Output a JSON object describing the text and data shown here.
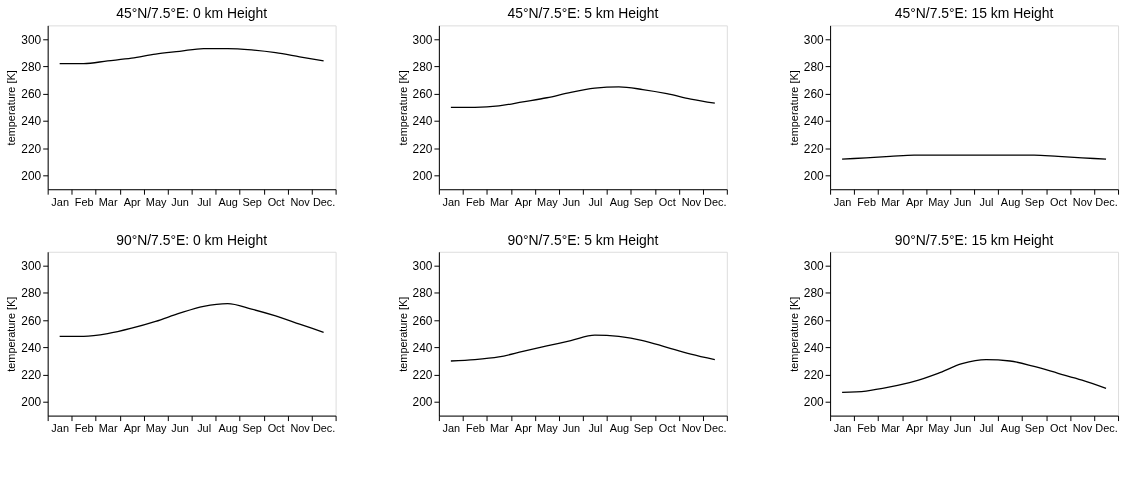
{
  "chart_data": [
    {
      "type": "line",
      "title": "45°N/7.5°E: 0 km Height",
      "ylabel": "temperature [K]",
      "grid": false,
      "categories": [
        "Jan",
        "Feb",
        "Mar",
        "Apr",
        "May",
        "Jun",
        "Jul",
        "Aug",
        "Sep",
        "Oct",
        "Nov",
        "Dec."
      ],
      "ylim": [
        190,
        310
      ],
      "yticks": [
        200,
        220,
        240,
        260,
        280,
        300
      ],
      "series": [
        {
          "color": "#000000",
          "values": [
            282,
            282,
            284,
            286,
            289,
            291,
            293,
            293,
            292,
            290,
            287,
            284
          ]
        }
      ]
    },
    {
      "type": "line",
      "title": "45°N/7.5°E: 5 km Height",
      "ylabel": "temperature [K]",
      "grid": false,
      "categories": [
        "Jan",
        "Feb",
        "Mar",
        "Apr",
        "May",
        "Jun",
        "Jul",
        "Aug",
        "Sep",
        "Oct",
        "Nov",
        "Dec."
      ],
      "ylim": [
        190,
        310
      ],
      "yticks": [
        200,
        220,
        240,
        260,
        280,
        300
      ],
      "series": [
        {
          "color": "#000000",
          "values": [
            250,
            250,
            251,
            254,
            257,
            261,
            264,
            265,
            263,
            260,
            256,
            253
          ]
        }
      ]
    },
    {
      "type": "line",
      "title": "45°N/7.5°E: 15 km Height",
      "ylabel": "temperature [K]",
      "grid": false,
      "categories": [
        "Jan",
        "Feb",
        "Mar",
        "Apr",
        "May",
        "Jun",
        "Jul",
        "Aug",
        "Sep",
        "Oct",
        "Nov",
        "Dec."
      ],
      "ylim": [
        190,
        310
      ],
      "yticks": [
        200,
        220,
        240,
        260,
        280,
        300
      ],
      "series": [
        {
          "color": "#000000",
          "values": [
            212,
            213,
            214,
            215,
            215,
            215,
            215,
            215,
            215,
            214,
            213,
            212
          ]
        }
      ]
    },
    {
      "type": "line",
      "title": "90°N/7.5°E: 0 km Height",
      "ylabel": "temperature [K]",
      "grid": false,
      "categories": [
        "Jan",
        "Feb",
        "Mar",
        "Apr",
        "May",
        "Jun",
        "Jul",
        "Aug",
        "Sep",
        "Oct",
        "Nov",
        "Dec."
      ],
      "ylim": [
        190,
        310
      ],
      "yticks": [
        200,
        220,
        240,
        260,
        280,
        300
      ],
      "series": [
        {
          "color": "#000000",
          "values": [
            248,
            248,
            250,
            254,
            259,
            265,
            270,
            272,
            268,
            263,
            257,
            251
          ]
        }
      ]
    },
    {
      "type": "line",
      "title": "90°N/7.5°E: 5 km Height",
      "ylabel": "temperature [K]",
      "grid": false,
      "categories": [
        "Jan",
        "Feb",
        "Mar",
        "Apr",
        "May",
        "Jun",
        "Jul",
        "Aug",
        "Sep",
        "Oct",
        "Nov",
        "Dec."
      ],
      "ylim": [
        190,
        310
      ],
      "yticks": [
        200,
        220,
        240,
        260,
        280,
        300
      ],
      "series": [
        {
          "color": "#000000",
          "values": [
            230,
            231,
            233,
            237,
            241,
            245,
            249,
            248,
            245,
            240,
            235,
            231
          ]
        }
      ]
    },
    {
      "type": "line",
      "title": "90°N/7.5°E: 15 km Height",
      "ylabel": "temperature [K]",
      "grid": false,
      "categories": [
        "Jan",
        "Feb",
        "Mar",
        "Apr",
        "May",
        "Jun",
        "Jul",
        "Aug",
        "Sep",
        "Oct",
        "Nov",
        "Dec."
      ],
      "ylim": [
        190,
        310
      ],
      "yticks": [
        200,
        220,
        240,
        260,
        280,
        300
      ],
      "series": [
        {
          "color": "#000000",
          "values": [
            207,
            208,
            211,
            215,
            221,
            228,
            231,
            230,
            226,
            221,
            216,
            210
          ]
        }
      ]
    }
  ]
}
